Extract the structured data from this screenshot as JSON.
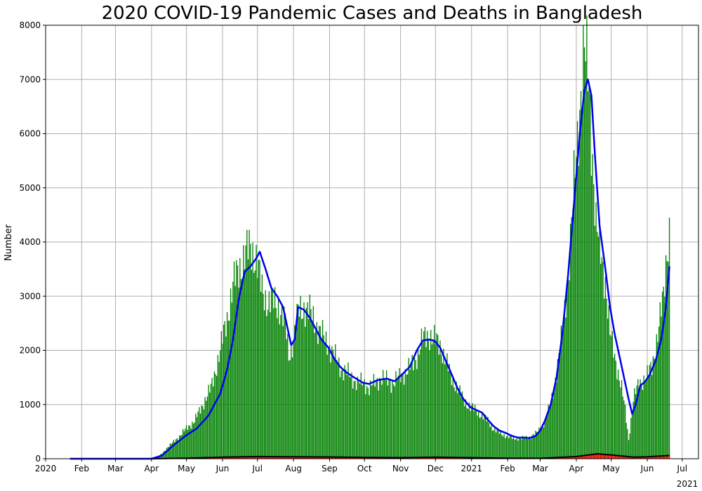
{
  "chart_data": {
    "type": "bar",
    "title": "2020 COVID-19 Pandemic Cases and Deaths in Bangladesh",
    "xlabel": "",
    "ylabel": "Number",
    "ylim": [
      0,
      8000
    ],
    "xlim": [
      "2020-01-01",
      "2021-07-15"
    ],
    "grid": true,
    "colors": {
      "cases": "#008000",
      "deaths": "#ff0000",
      "cases_avg": "#0000ee",
      "deaths_avg": "#000000",
      "grid": "#b0b0b0"
    },
    "yticks": [
      0,
      1000,
      2000,
      3000,
      4000,
      5000,
      6000,
      7000,
      8000
    ],
    "xticks": [
      {
        "date": "2020-01-01",
        "label": "2020"
      },
      {
        "date": "2020-02-01",
        "label": "Feb"
      },
      {
        "date": "2020-03-01",
        "label": "Mar"
      },
      {
        "date": "2020-04-01",
        "label": "Apr"
      },
      {
        "date": "2020-05-01",
        "label": "May"
      },
      {
        "date": "2020-06-01",
        "label": "Jun"
      },
      {
        "date": "2020-07-01",
        "label": "Jul"
      },
      {
        "date": "2020-08-01",
        "label": "Aug"
      },
      {
        "date": "2020-09-01",
        "label": "Sep"
      },
      {
        "date": "2020-10-01",
        "label": "Oct"
      },
      {
        "date": "2020-11-01",
        "label": "Nov"
      },
      {
        "date": "2020-12-01",
        "label": "Dec"
      },
      {
        "date": "2021-01-01",
        "label": "2021"
      },
      {
        "date": "2021-02-01",
        "label": "Feb"
      },
      {
        "date": "2021-03-01",
        "label": "Mar"
      },
      {
        "date": "2021-04-01",
        "label": "Apr"
      },
      {
        "date": "2021-05-01",
        "label": "May"
      },
      {
        "date": "2021-06-01",
        "label": "Jun"
      },
      {
        "date": "2021-07-01",
        "label": "Jul"
      }
    ],
    "year_label": "2021",
    "series": [
      {
        "kind": "daily_cases_bars",
        "points": [
          [
            "2020-01-22",
            0
          ],
          [
            "2020-03-08",
            3
          ],
          [
            "2020-03-31",
            2
          ],
          [
            "2020-04-05",
            20
          ],
          [
            "2020-04-10",
            95
          ],
          [
            "2020-04-15",
            220
          ],
          [
            "2020-04-20",
            310
          ],
          [
            "2020-04-25",
            420
          ],
          [
            "2020-05-01",
            560
          ],
          [
            "2020-05-08",
            700
          ],
          [
            "2020-05-15",
            1000
          ],
          [
            "2020-05-22",
            1300
          ],
          [
            "2020-05-29",
            1900
          ],
          [
            "2020-06-05",
            2600
          ],
          [
            "2020-06-10",
            3200
          ],
          [
            "2020-06-15",
            3500
          ],
          [
            "2020-06-20",
            3750
          ],
          [
            "2020-06-25",
            3900
          ],
          [
            "2020-06-30",
            3700
          ],
          [
            "2020-07-05",
            3100
          ],
          [
            "2020-07-10",
            2900
          ],
          [
            "2020-07-15",
            2900
          ],
          [
            "2020-07-20",
            2800
          ],
          [
            "2020-07-25",
            2500
          ],
          [
            "2020-07-28",
            1900
          ],
          [
            "2020-08-01",
            2200
          ],
          [
            "2020-08-05",
            2700
          ],
          [
            "2020-08-10",
            2800
          ],
          [
            "2020-08-15",
            2700
          ],
          [
            "2020-08-20",
            2500
          ],
          [
            "2020-08-25",
            2300
          ],
          [
            "2020-08-31",
            2100
          ],
          [
            "2020-09-05",
            1900
          ],
          [
            "2020-09-10",
            1700
          ],
          [
            "2020-09-15",
            1600
          ],
          [
            "2020-09-20",
            1500
          ],
          [
            "2020-09-25",
            1400
          ],
          [
            "2020-10-01",
            1400
          ],
          [
            "2020-10-05",
            1300
          ],
          [
            "2020-10-10",
            1400
          ],
          [
            "2020-10-15",
            1500
          ],
          [
            "2020-10-20",
            1450
          ],
          [
            "2020-10-25",
            1400
          ],
          [
            "2020-10-31",
            1500
          ],
          [
            "2020-11-05",
            1600
          ],
          [
            "2020-11-10",
            1700
          ],
          [
            "2020-11-15",
            1900
          ],
          [
            "2020-11-20",
            2200
          ],
          [
            "2020-11-25",
            2300
          ],
          [
            "2020-11-30",
            2200
          ],
          [
            "2020-12-05",
            2100
          ],
          [
            "2020-12-10",
            1800
          ],
          [
            "2020-12-15",
            1500
          ],
          [
            "2020-12-20",
            1300
          ],
          [
            "2020-12-25",
            1100
          ],
          [
            "2020-12-31",
            950
          ],
          [
            "2021-01-05",
            900
          ],
          [
            "2021-01-10",
            800
          ],
          [
            "2021-01-15",
            700
          ],
          [
            "2021-01-20",
            550
          ],
          [
            "2021-01-25",
            480
          ],
          [
            "2021-01-31",
            420
          ],
          [
            "2021-02-05",
            380
          ],
          [
            "2021-02-10",
            380
          ],
          [
            "2021-02-15",
            380
          ],
          [
            "2021-02-20",
            400
          ],
          [
            "2021-02-25",
            460
          ],
          [
            "2021-03-01",
            550
          ],
          [
            "2021-03-05",
            700
          ],
          [
            "2021-03-10",
            1000
          ],
          [
            "2021-03-15",
            1600
          ],
          [
            "2021-03-20",
            2300
          ],
          [
            "2021-03-25",
            3400
          ],
          [
            "2021-03-30",
            5000
          ],
          [
            "2021-04-04",
            6500
          ],
          [
            "2021-04-06",
            7200
          ],
          [
            "2021-04-08",
            7500
          ],
          [
            "2021-04-10",
            7200
          ],
          [
            "2021-04-12",
            6900
          ],
          [
            "2021-04-15",
            5600
          ],
          [
            "2021-04-18",
            4300
          ],
          [
            "2021-04-22",
            3800
          ],
          [
            "2021-04-26",
            3300
          ],
          [
            "2021-04-30",
            2300
          ],
          [
            "2021-05-05",
            1800
          ],
          [
            "2021-05-10",
            1300
          ],
          [
            "2021-05-13",
            900
          ],
          [
            "2021-05-16",
            350
          ],
          [
            "2021-05-20",
            1100
          ],
          [
            "2021-05-25",
            1400
          ],
          [
            "2021-05-31",
            1500
          ],
          [
            "2021-06-05",
            1700
          ],
          [
            "2021-06-10",
            2300
          ],
          [
            "2021-06-15",
            3000
          ],
          [
            "2021-06-18",
            3900
          ],
          [
            "2021-06-20",
            4200
          ]
        ]
      },
      {
        "kind": "cases_moving_average_line",
        "points": [
          [
            "2020-01-22",
            0
          ],
          [
            "2020-04-01",
            0
          ],
          [
            "2020-04-10",
            60
          ],
          [
            "2020-04-20",
            250
          ],
          [
            "2020-04-30",
            420
          ],
          [
            "2020-05-10",
            560
          ],
          [
            "2020-05-20",
            800
          ],
          [
            "2020-05-30",
            1200
          ],
          [
            "2020-06-05",
            1650
          ],
          [
            "2020-06-10",
            2200
          ],
          [
            "2020-06-15",
            2950
          ],
          [
            "2020-06-20",
            3450
          ],
          [
            "2020-06-25",
            3550
          ],
          [
            "2020-06-30",
            3700
          ],
          [
            "2020-07-03",
            3820
          ],
          [
            "2020-07-08",
            3500
          ],
          [
            "2020-07-13",
            3150
          ],
          [
            "2020-07-18",
            3000
          ],
          [
            "2020-07-23",
            2800
          ],
          [
            "2020-07-27",
            2400
          ],
          [
            "2020-07-30",
            2100
          ],
          [
            "2020-08-02",
            2200
          ],
          [
            "2020-08-05",
            2800
          ],
          [
            "2020-08-10",
            2750
          ],
          [
            "2020-08-15",
            2600
          ],
          [
            "2020-08-20",
            2400
          ],
          [
            "2020-08-25",
            2200
          ],
          [
            "2020-08-31",
            2050
          ],
          [
            "2020-09-05",
            1850
          ],
          [
            "2020-09-10",
            1700
          ],
          [
            "2020-09-15",
            1600
          ],
          [
            "2020-09-22",
            1500
          ],
          [
            "2020-09-30",
            1400
          ],
          [
            "2020-10-05",
            1380
          ],
          [
            "2020-10-12",
            1450
          ],
          [
            "2020-10-20",
            1480
          ],
          [
            "2020-10-27",
            1430
          ],
          [
            "2020-11-02",
            1550
          ],
          [
            "2020-11-09",
            1700
          ],
          [
            "2020-11-15",
            2000
          ],
          [
            "2020-11-20",
            2180
          ],
          [
            "2020-11-25",
            2200
          ],
          [
            "2020-11-30",
            2180
          ],
          [
            "2020-12-05",
            2050
          ],
          [
            "2020-12-10",
            1800
          ],
          [
            "2020-12-15",
            1550
          ],
          [
            "2020-12-20",
            1300
          ],
          [
            "2020-12-25",
            1100
          ],
          [
            "2020-12-31",
            950
          ],
          [
            "2021-01-05",
            900
          ],
          [
            "2021-01-10",
            850
          ],
          [
            "2021-01-15",
            720
          ],
          [
            "2021-01-20",
            600
          ],
          [
            "2021-01-25",
            520
          ],
          [
            "2021-01-31",
            470
          ],
          [
            "2021-02-05",
            420
          ],
          [
            "2021-02-10",
            390
          ],
          [
            "2021-02-15",
            390
          ],
          [
            "2021-02-20",
            380
          ],
          [
            "2021-02-25",
            420
          ],
          [
            "2021-03-01",
            520
          ],
          [
            "2021-03-05",
            700
          ],
          [
            "2021-03-10",
            1000
          ],
          [
            "2021-03-15",
            1500
          ],
          [
            "2021-03-20",
            2300
          ],
          [
            "2021-03-25",
            3400
          ],
          [
            "2021-03-30",
            4700
          ],
          [
            "2021-04-04",
            6000
          ],
          [
            "2021-04-08",
            6800
          ],
          [
            "2021-04-11",
            7000
          ],
          [
            "2021-04-14",
            6700
          ],
          [
            "2021-04-17",
            5600
          ],
          [
            "2021-04-21",
            4300
          ],
          [
            "2021-04-26",
            3500
          ],
          [
            "2021-04-30",
            2800
          ],
          [
            "2021-05-04",
            2300
          ],
          [
            "2021-05-08",
            1900
          ],
          [
            "2021-05-12",
            1500
          ],
          [
            "2021-05-16",
            1100
          ],
          [
            "2021-05-19",
            830
          ],
          [
            "2021-05-22",
            1000
          ],
          [
            "2021-05-26",
            1350
          ],
          [
            "2021-05-30",
            1420
          ],
          [
            "2021-06-03",
            1550
          ],
          [
            "2021-06-08",
            1800
          ],
          [
            "2021-06-13",
            2200
          ],
          [
            "2021-06-17",
            2800
          ],
          [
            "2021-06-20",
            3550
          ]
        ]
      },
      {
        "kind": "daily_deaths_bars",
        "points": [
          [
            "2020-01-22",
            0
          ],
          [
            "2020-04-01",
            0
          ],
          [
            "2020-04-15",
            5
          ],
          [
            "2020-05-01",
            10
          ],
          [
            "2020-05-15",
            20
          ],
          [
            "2020-06-01",
            30
          ],
          [
            "2020-06-15",
            40
          ],
          [
            "2020-07-01",
            45
          ],
          [
            "2020-07-15",
            40
          ],
          [
            "2020-08-01",
            35
          ],
          [
            "2020-08-15",
            38
          ],
          [
            "2020-09-01",
            35
          ],
          [
            "2020-09-15",
            30
          ],
          [
            "2020-10-01",
            25
          ],
          [
            "2020-10-15",
            22
          ],
          [
            "2020-11-01",
            20
          ],
          [
            "2020-11-15",
            25
          ],
          [
            "2020-12-01",
            30
          ],
          [
            "2020-12-15",
            28
          ],
          [
            "2021-01-01",
            20
          ],
          [
            "2021-01-15",
            15
          ],
          [
            "2021-02-01",
            10
          ],
          [
            "2021-02-15",
            8
          ],
          [
            "2021-03-01",
            8
          ],
          [
            "2021-03-15",
            15
          ],
          [
            "2021-04-01",
            45
          ],
          [
            "2021-04-10",
            70
          ],
          [
            "2021-04-19",
            95
          ],
          [
            "2021-04-25",
            90
          ],
          [
            "2021-05-01",
            70
          ],
          [
            "2021-05-10",
            45
          ],
          [
            "2021-05-20",
            30
          ],
          [
            "2021-06-01",
            35
          ],
          [
            "2021-06-15",
            50
          ],
          [
            "2021-06-20",
            65
          ]
        ]
      },
      {
        "kind": "deaths_moving_average_line",
        "points": [
          [
            "2020-01-22",
            0
          ],
          [
            "2020-04-01",
            0
          ],
          [
            "2020-05-01",
            10
          ],
          [
            "2020-06-01",
            28
          ],
          [
            "2020-07-01",
            40
          ],
          [
            "2020-08-01",
            36
          ],
          [
            "2020-09-01",
            33
          ],
          [
            "2020-10-01",
            25
          ],
          [
            "2020-11-01",
            20
          ],
          [
            "2020-12-01",
            28
          ],
          [
            "2021-01-01",
            20
          ],
          [
            "2021-02-01",
            10
          ],
          [
            "2021-03-01",
            8
          ],
          [
            "2021-04-01",
            40
          ],
          [
            "2021-04-19",
            90
          ],
          [
            "2021-05-01",
            70
          ],
          [
            "2021-05-20",
            30
          ],
          [
            "2021-06-01",
            35
          ],
          [
            "2021-06-20",
            60
          ]
        ]
      }
    ]
  }
}
